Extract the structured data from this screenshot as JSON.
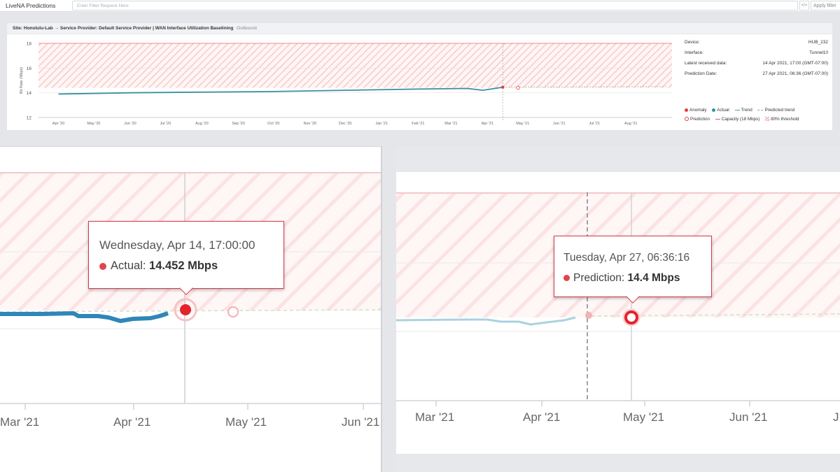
{
  "app": {
    "title": "LiveNA Predictions"
  },
  "filter": {
    "placeholder": "Enter Filter Request Here",
    "code_icon": "</>",
    "apply_label": "Apply filter"
  },
  "panel": {
    "site_text": "Site: Honolulu-Lab → Service Provider: Default Service Provider | WAN Interface Utilization Baselining",
    "direction": "Outbound"
  },
  "info": [
    {
      "key": "Device:",
      "value": "HUB_232"
    },
    {
      "key": "Interface:",
      "value": "Tunnel10"
    },
    {
      "key": "Latest received data:",
      "value": "14 Apr 2021, 17:00 (GMT-07:00)"
    },
    {
      "key": "Prediction Date:",
      "value": "27 Apr 2021, 06:36 (GMT-07:00)"
    }
  ],
  "legend": {
    "anomaly": "Anomaly",
    "actual": "Actual",
    "trend": "Trend",
    "predicted_trend": "Predicted trend",
    "prediction": "Prediction",
    "capacity": "Capacity (18 Mbps)",
    "threshold": "80% threshold"
  },
  "colors": {
    "actual": "#3a8fa0",
    "anomaly": "#e0403f",
    "capacity": "#e85c5c",
    "trend": "#5aa469",
    "hatch": "#f5c9c9",
    "predicted_trend": "#b7c9a8"
  },
  "chart_data": {
    "type": "line",
    "ylabel": "Bit Rate (Mbps)",
    "y_ticks": [
      "12",
      "14",
      "16",
      "18"
    ],
    "ylim": [
      12,
      18
    ],
    "x_ticks": [
      "Apr '20",
      "May '20",
      "Jun '20",
      "Jul '20",
      "Aug '20",
      "Sep '20",
      "Oct '20",
      "Nov '20",
      "Dec '20",
      "Jan '21",
      "Feb '21",
      "Mar '21",
      "Apr '21",
      "May '21",
      "Jun '21",
      "Jul '21",
      "Aug '21"
    ],
    "capacity_mbps": 18,
    "threshold_pct": 80,
    "series": [
      {
        "name": "Actual",
        "x": [
          "2020-04-01",
          "2020-06-01",
          "2020-08-01",
          "2020-10-01",
          "2020-12-01",
          "2021-02-01",
          "2021-03-15",
          "2021-03-28",
          "2021-04-14"
        ],
        "values": [
          13.9,
          14.0,
          14.05,
          14.1,
          14.2,
          14.3,
          14.35,
          14.2,
          14.45
        ]
      },
      {
        "name": "Prediction",
        "x": [
          "2021-04-27"
        ],
        "values": [
          14.4
        ]
      },
      {
        "name": "Predicted trend",
        "x": [
          "2021-04-14",
          "2021-08-31"
        ],
        "values": [
          14.45,
          14.5
        ]
      }
    ]
  },
  "zoom_left": {
    "tooltip_title": "Wednesday, Apr 14, 17:00:00",
    "tooltip_series": "Actual:",
    "tooltip_value": "14.452 Mbps",
    "x_labels": [
      "Mar '21",
      "Apr '21",
      "May '21",
      "Jun '21"
    ]
  },
  "zoom_right": {
    "tooltip_title": "Tuesday, Apr 27, 06:36:16",
    "tooltip_series": "Prediction:",
    "tooltip_value": "14.4 Mbps",
    "x_labels": [
      "Mar '21",
      "Apr '21",
      "May '21",
      "Jun '21",
      "J"
    ]
  }
}
